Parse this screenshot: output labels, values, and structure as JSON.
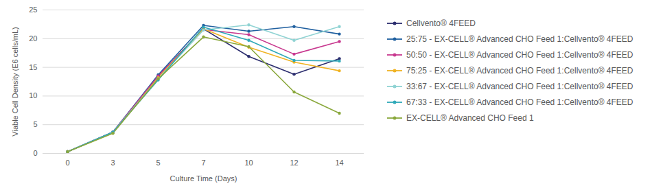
{
  "chart_data": {
    "type": "line",
    "x_label": "Culture Time (Days)",
    "y_label": "Viable Cell Density (E6 cells/mL)",
    "categories": [
      "0",
      "3",
      "5",
      "7",
      "10",
      "12",
      "14"
    ],
    "ylim": [
      0,
      25
    ],
    "yticks": [
      0,
      5,
      10,
      15,
      20,
      25
    ],
    "grid": true,
    "legend": "right",
    "marker": "circle",
    "series": [
      {
        "name": "Cellvento® 4FEED",
        "color": "#2b2d6e",
        "values": [
          0.3,
          3.7,
          13.5,
          21.7,
          16.9,
          13.8,
          16.5
        ]
      },
      {
        "name": "25:75 - EX-CELL® Advanced CHO Feed 1:Cellvento® 4FEED",
        "color": "#1f5f9f",
        "values": [
          0.3,
          3.7,
          13.7,
          22.3,
          21.3,
          22.1,
          20.8
        ]
      },
      {
        "name": "50:50 - EX-CELL® Advanced CHO Feed 1:Cellvento® 4FEED",
        "color": "#c8388f",
        "values": [
          0.3,
          3.7,
          13.5,
          21.6,
          20.7,
          17.3,
          19.5
        ]
      },
      {
        "name": "75:25 - EX-CELL® Advanced CHO Feed 1:Cellvento® 4FEED",
        "color": "#f0b323",
        "values": [
          0.3,
          3.6,
          13.2,
          21.7,
          18.5,
          15.9,
          14.4
        ]
      },
      {
        "name": "33:67 - EX-CELL® Advanced CHO Feed 1:Cellvento® 4FEED",
        "color": "#8fd3d3",
        "values": [
          0.3,
          3.7,
          13.0,
          21.5,
          22.4,
          19.7,
          22.1
        ]
      },
      {
        "name": "67:33 - EX-CELL® Advanced CHO Feed 1:Cellvento® 4FEED",
        "color": "#2fa9b8",
        "values": [
          0.3,
          3.7,
          12.8,
          22.0,
          19.7,
          16.2,
          16.1
        ]
      },
      {
        "name": "EX-CELL® Advanced CHO Feed 1",
        "color": "#8aa83c",
        "values": [
          0.3,
          3.5,
          13.0,
          20.3,
          18.6,
          10.7,
          7.0
        ]
      }
    ]
  }
}
